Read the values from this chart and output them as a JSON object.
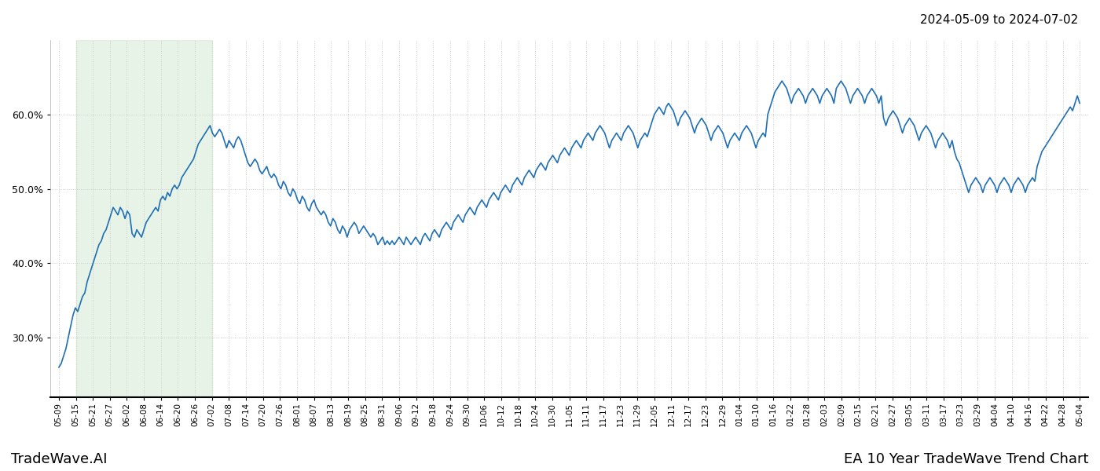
{
  "title_right": "2024-05-09 to 2024-07-02",
  "footer_left": "TradeWave.AI",
  "footer_right": "EA 10 Year TradeWave Trend Chart",
  "line_color": "#1f6fb5",
  "line_width": 1.2,
  "highlight_color": "#c8e6c9",
  "highlight_alpha": 0.45,
  "background_color": "#ffffff",
  "grid_color": "#cccccc",
  "grid_style": ":",
  "ylim": [
    22,
    70
  ],
  "yticks": [
    30.0,
    40.0,
    50.0,
    60.0
  ],
  "x_labels": [
    "05-09",
    "05-15",
    "05-21",
    "05-27",
    "06-02",
    "06-08",
    "06-14",
    "06-20",
    "06-26",
    "07-02",
    "07-08",
    "07-14",
    "07-20",
    "07-26",
    "08-01",
    "08-07",
    "08-13",
    "08-19",
    "08-25",
    "08-31",
    "09-06",
    "09-12",
    "09-18",
    "09-24",
    "09-30",
    "10-06",
    "10-12",
    "10-18",
    "10-24",
    "10-30",
    "11-05",
    "11-11",
    "11-17",
    "11-23",
    "11-29",
    "12-05",
    "12-11",
    "12-17",
    "12-23",
    "12-29",
    "01-04",
    "01-10",
    "01-16",
    "01-22",
    "01-28",
    "02-03",
    "02-09",
    "02-15",
    "02-21",
    "02-27",
    "03-05",
    "03-11",
    "03-17",
    "03-23",
    "03-29",
    "04-04",
    "04-10",
    "04-16",
    "04-22",
    "04-28",
    "05-04"
  ],
  "highlight_label_start": "05-15",
  "highlight_label_end": "07-02",
  "y_values": [
    26.0,
    26.5,
    27.5,
    28.5,
    30.0,
    31.5,
    33.0,
    34.0,
    33.5,
    34.5,
    35.5,
    36.0,
    37.5,
    38.5,
    39.5,
    40.5,
    41.5,
    42.5,
    43.0,
    44.0,
    44.5,
    45.5,
    46.5,
    47.5,
    47.0,
    46.5,
    47.5,
    47.0,
    46.0,
    47.0,
    46.5,
    44.0,
    43.5,
    44.5,
    44.0,
    43.5,
    44.5,
    45.5,
    46.0,
    46.5,
    47.0,
    47.5,
    47.0,
    48.5,
    49.0,
    48.5,
    49.5,
    49.0,
    50.0,
    50.5,
    50.0,
    50.5,
    51.5,
    52.0,
    52.5,
    53.0,
    53.5,
    54.0,
    55.0,
    56.0,
    56.5,
    57.0,
    57.5,
    58.0,
    58.5,
    57.5,
    57.0,
    57.5,
    58.0,
    57.5,
    56.5,
    55.5,
    56.5,
    56.0,
    55.5,
    56.5,
    57.0,
    56.5,
    55.5,
    54.5,
    53.5,
    53.0,
    53.5,
    54.0,
    53.5,
    52.5,
    52.0,
    52.5,
    53.0,
    52.0,
    51.5,
    52.0,
    51.5,
    50.5,
    50.0,
    51.0,
    50.5,
    49.5,
    49.0,
    50.0,
    49.5,
    48.5,
    48.0,
    49.0,
    48.5,
    47.5,
    47.0,
    48.0,
    48.5,
    47.5,
    47.0,
    46.5,
    47.0,
    46.5,
    45.5,
    45.0,
    46.0,
    45.5,
    44.5,
    44.0,
    45.0,
    44.5,
    43.5,
    44.5,
    45.0,
    45.5,
    45.0,
    44.0,
    44.5,
    45.0,
    44.5,
    44.0,
    43.5,
    44.0,
    43.5,
    42.5,
    43.0,
    43.5,
    42.5,
    43.0,
    42.5,
    43.0,
    42.5,
    43.0,
    43.5,
    43.0,
    42.5,
    43.5,
    43.0,
    42.5,
    43.0,
    43.5,
    43.0,
    42.5,
    43.5,
    44.0,
    43.5,
    43.0,
    44.0,
    44.5,
    44.0,
    43.5,
    44.5,
    45.0,
    45.5,
    45.0,
    44.5,
    45.5,
    46.0,
    46.5,
    46.0,
    45.5,
    46.5,
    47.0,
    47.5,
    47.0,
    46.5,
    47.5,
    48.0,
    48.5,
    48.0,
    47.5,
    48.5,
    49.0,
    49.5,
    49.0,
    48.5,
    49.5,
    50.0,
    50.5,
    50.0,
    49.5,
    50.5,
    51.0,
    51.5,
    51.0,
    50.5,
    51.5,
    52.0,
    52.5,
    52.0,
    51.5,
    52.5,
    53.0,
    53.5,
    53.0,
    52.5,
    53.5,
    54.0,
    54.5,
    54.0,
    53.5,
    54.5,
    55.0,
    55.5,
    55.0,
    54.5,
    55.5,
    56.0,
    56.5,
    56.0,
    55.5,
    56.5,
    57.0,
    57.5,
    57.0,
    56.5,
    57.5,
    58.0,
    58.5,
    58.0,
    57.5,
    56.5,
    55.5,
    56.5,
    57.0,
    57.5,
    57.0,
    56.5,
    57.5,
    58.0,
    58.5,
    58.0,
    57.5,
    56.5,
    55.5,
    56.5,
    57.0,
    57.5,
    57.0,
    58.0,
    59.0,
    60.0,
    60.5,
    61.0,
    60.5,
    60.0,
    61.0,
    61.5,
    61.0,
    60.5,
    59.5,
    58.5,
    59.5,
    60.0,
    60.5,
    60.0,
    59.5,
    58.5,
    57.5,
    58.5,
    59.0,
    59.5,
    59.0,
    58.5,
    57.5,
    56.5,
    57.5,
    58.0,
    58.5,
    58.0,
    57.5,
    56.5,
    55.5,
    56.5,
    57.0,
    57.5,
    57.0,
    56.5,
    57.5,
    58.0,
    58.5,
    58.0,
    57.5,
    56.5,
    55.5,
    56.5,
    57.0,
    57.5,
    57.0,
    60.0,
    61.0,
    62.0,
    63.0,
    63.5,
    64.0,
    64.5,
    64.0,
    63.5,
    62.5,
    61.5,
    62.5,
    63.0,
    63.5,
    63.0,
    62.5,
    61.5,
    62.5,
    63.0,
    63.5,
    63.0,
    62.5,
    61.5,
    62.5,
    63.0,
    63.5,
    63.0,
    62.5,
    61.5,
    63.5,
    64.0,
    64.5,
    64.0,
    63.5,
    62.5,
    61.5,
    62.5,
    63.0,
    63.5,
    63.0,
    62.5,
    61.5,
    62.5,
    63.0,
    63.5,
    63.0,
    62.5,
    61.5,
    62.5,
    59.5,
    58.5,
    59.5,
    60.0,
    60.5,
    60.0,
    59.5,
    58.5,
    57.5,
    58.5,
    59.0,
    59.5,
    59.0,
    58.5,
    57.5,
    56.5,
    57.5,
    58.0,
    58.5,
    58.0,
    57.5,
    56.5,
    55.5,
    56.5,
    57.0,
    57.5,
    57.0,
    56.5,
    55.5,
    56.5,
    55.0,
    54.0,
    53.5,
    52.5,
    51.5,
    50.5,
    49.5,
    50.5,
    51.0,
    51.5,
    51.0,
    50.5,
    49.5,
    50.5,
    51.0,
    51.5,
    51.0,
    50.5,
    49.5,
    50.5,
    51.0,
    51.5,
    51.0,
    50.5,
    49.5,
    50.5,
    51.0,
    51.5,
    51.0,
    50.5,
    49.5,
    50.5,
    51.0,
    51.5,
    51.0,
    53.0,
    54.0,
    55.0,
    55.5,
    56.0,
    56.5,
    57.0,
    57.5,
    58.0,
    58.5,
    59.0,
    59.5,
    60.0,
    60.5,
    61.0,
    60.5,
    61.5,
    62.5,
    61.5
  ]
}
